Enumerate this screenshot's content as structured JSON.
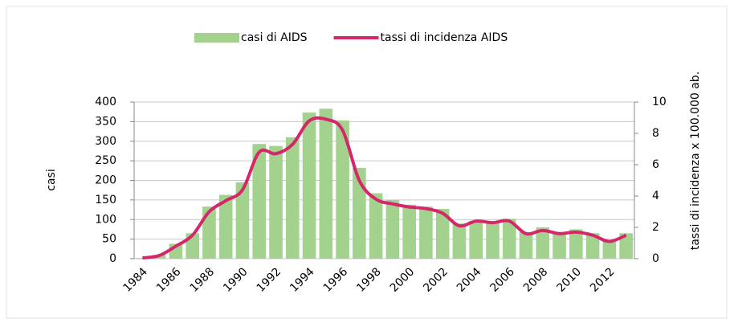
{
  "chart_data": {
    "type": "bar",
    "categories": [
      "1984",
      null,
      "1986",
      null,
      "1988",
      null,
      "1990",
      null,
      "1992",
      null,
      "1994",
      null,
      "1996",
      null,
      "1998",
      null,
      "2000",
      null,
      "2002",
      null,
      "2004",
      null,
      "2006",
      null,
      "2008",
      null,
      "2010",
      null,
      "2012",
      null
    ],
    "series": [
      {
        "name": "casi di AIDS",
        "type": "bar",
        "color": "#a3d28e",
        "values": [
          2,
          10,
          38,
          65,
          133,
          163,
          195,
          293,
          288,
          310,
          373,
          383,
          353,
          232,
          167,
          150,
          138,
          133,
          127,
          90,
          97,
          95,
          102,
          68,
          80,
          68,
          75,
          65,
          48,
          65
        ]
      },
      {
        "name": "tassi di incidenza AIDS",
        "type": "line",
        "axis": "y2",
        "color": "#d4286a",
        "values": [
          0.05,
          0.2,
          0.8,
          1.5,
          3.0,
          3.7,
          4.4,
          6.8,
          6.7,
          7.3,
          8.8,
          8.9,
          8.2,
          5.0,
          3.8,
          3.5,
          3.3,
          3.2,
          2.9,
          2.1,
          2.4,
          2.3,
          2.4,
          1.6,
          1.8,
          1.6,
          1.7,
          1.5,
          1.1,
          1.5
        ]
      }
    ],
    "y_label": "casi",
    "y2_label": "tassi di incidenza x 100.000 ab.",
    "ylim": [
      0,
      400
    ],
    "yticks": [
      0,
      50,
      100,
      150,
      200,
      250,
      300,
      350,
      400
    ],
    "y2lim": [
      0,
      10
    ],
    "y2ticks": [
      0,
      2,
      4,
      6,
      8,
      10
    ],
    "grid": true,
    "legend": "top"
  }
}
